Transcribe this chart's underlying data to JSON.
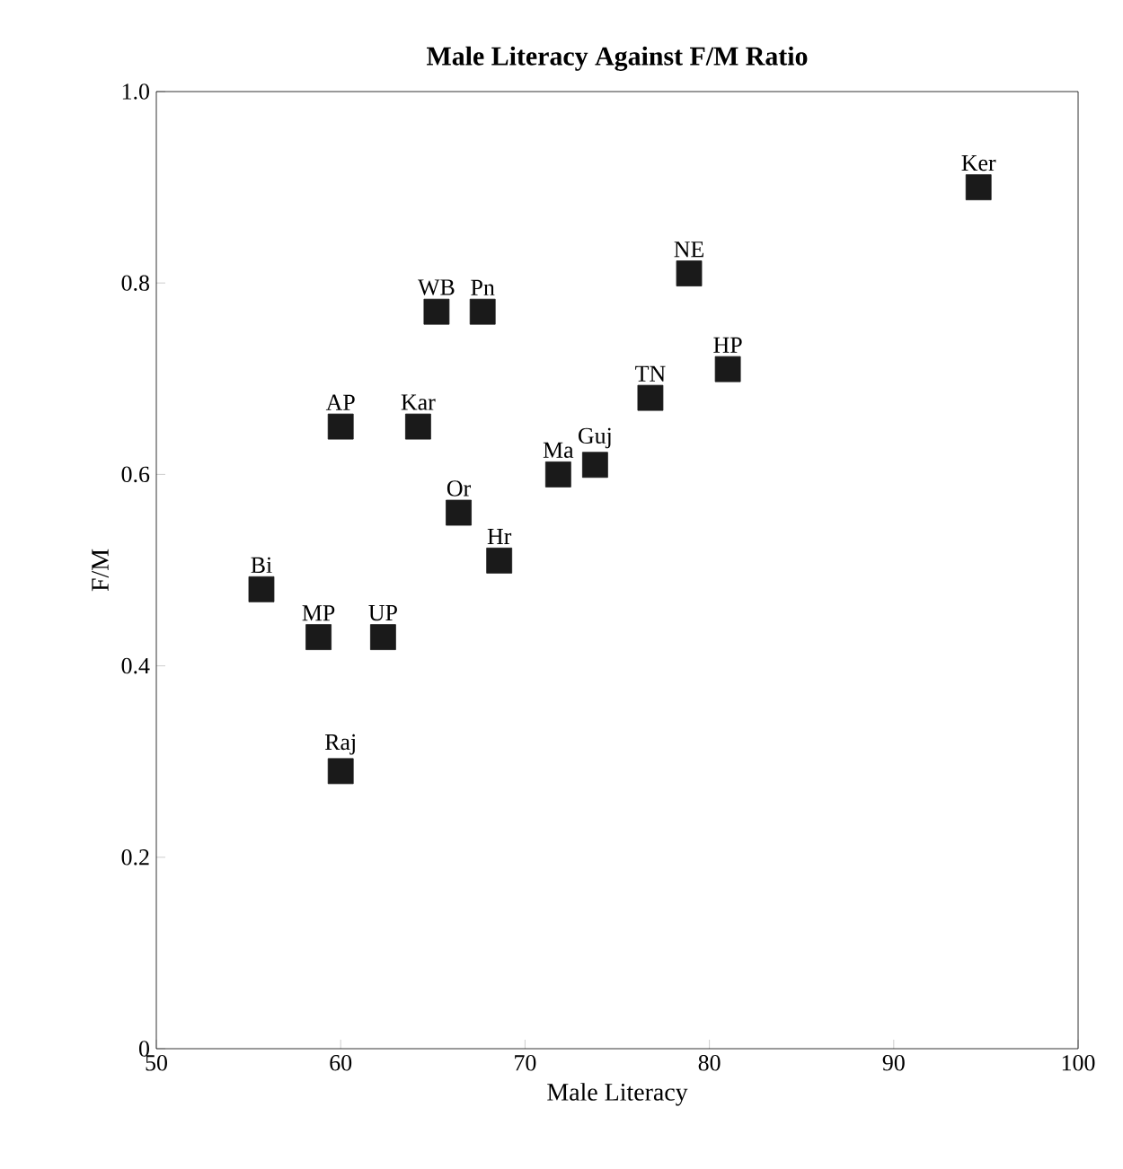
{
  "chart_data": {
    "type": "scatter",
    "title": "Male Literacy Against F/M Ratio",
    "xlabel": "Male Literacy",
    "ylabel": "F/M",
    "x": [
      94.6,
      78.9,
      81.0,
      76.8,
      65.2,
      67.7,
      60.0,
      64.2,
      71.8,
      73.8,
      66.4,
      68.6,
      55.7,
      58.8,
      62.3,
      60.0
    ],
    "values": [
      0.9,
      0.81,
      0.71,
      0.68,
      0.77,
      0.77,
      0.65,
      0.65,
      0.6,
      0.61,
      0.56,
      0.51,
      0.48,
      0.43,
      0.43,
      0.29
    ],
    "color": "#1a1a1a",
    "marker": "square",
    "grid": false,
    "xlim": [
      50,
      100
    ],
    "ylim": [
      0,
      1
    ],
    "xticks": [
      50,
      60,
      70,
      80,
      90,
      100
    ],
    "yticks": [
      0,
      0.2,
      0.4,
      0.6,
      0.8,
      {
        "value": 1,
        "label": "1.0"
      }
    ],
    "annotations": [
      {
        "text": "Ker",
        "x": 94.6,
        "y": 0.9
      },
      {
        "text": "NE",
        "x": 78.9,
        "y": 0.81
      },
      {
        "text": "HP",
        "x": 81.0,
        "y": 0.71
      },
      {
        "text": "TN",
        "x": 76.8,
        "y": 0.68
      },
      {
        "text": "WB",
        "x": 65.2,
        "y": 0.77
      },
      {
        "text": "Pn",
        "x": 67.7,
        "y": 0.77
      },
      {
        "text": "AP",
        "x": 60.0,
        "y": 0.65
      },
      {
        "text": "Kar",
        "x": 64.2,
        "y": 0.65
      },
      {
        "text": "Ma",
        "x": 71.8,
        "y": 0.6
      },
      {
        "text": "Guj",
        "x": 73.8,
        "y": 0.61
      },
      {
        "text": "Or",
        "x": 66.4,
        "y": 0.56
      },
      {
        "text": "Hr",
        "x": 68.6,
        "y": 0.51
      },
      {
        "text": "Bi",
        "x": 55.7,
        "y": 0.48
      },
      {
        "text": "MP",
        "x": 58.8,
        "y": 0.43
      },
      {
        "text": "UP",
        "x": 62.3,
        "y": 0.43
      },
      {
        "text": "Raj",
        "x": 60.0,
        "y": 0.29
      }
    ]
  }
}
